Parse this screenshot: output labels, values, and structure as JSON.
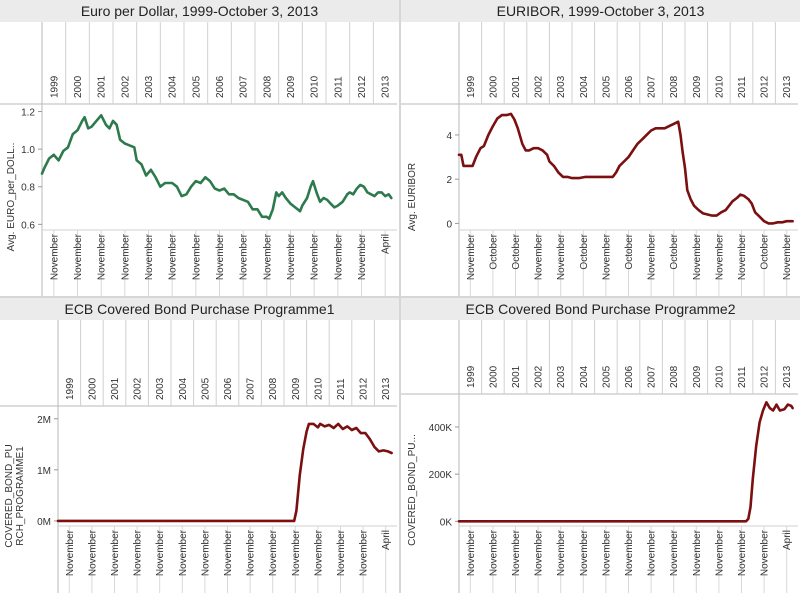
{
  "chart_data": [
    {
      "type": "line",
      "title": "Euro per Dollar, 1999-October 3, 2013",
      "ylabel": "Avg. EURO_per_DOLL..",
      "years": [
        "1999",
        "2000",
        "2001",
        "2002",
        "2003",
        "2004",
        "2005",
        "2006",
        "2007",
        "2008",
        "2009",
        "2010",
        "2011",
        "2012",
        "2013"
      ],
      "bottom_labels": [
        "November",
        "November",
        "November",
        "November",
        "November",
        "November",
        "November",
        "November",
        "November",
        "November",
        "November",
        "November",
        "November",
        "November",
        "April"
      ],
      "yticks": [
        {
          "v": 0.6,
          "label": "0.6"
        },
        {
          "v": 0.8,
          "label": "0.8"
        },
        {
          "v": 1.0,
          "label": "1.0"
        },
        {
          "v": 1.2,
          "label": "1.2"
        }
      ],
      "ylim": [
        0.57,
        1.24
      ],
      "color": "#2d7a4d",
      "series": [
        {
          "values": [
            [
              1999.0,
              0.87
            ],
            [
              1999.1,
              0.9
            ],
            [
              1999.3,
              0.95
            ],
            [
              1999.5,
              0.97
            ],
            [
              1999.7,
              0.94
            ],
            [
              1999.9,
              0.99
            ],
            [
              2000.1,
              1.01
            ],
            [
              2000.3,
              1.08
            ],
            [
              2000.5,
              1.1
            ],
            [
              2000.7,
              1.15
            ],
            [
              2000.8,
              1.17
            ],
            [
              2000.95,
              1.11
            ],
            [
              2001.1,
              1.12
            ],
            [
              2001.3,
              1.15
            ],
            [
              2001.5,
              1.18
            ],
            [
              2001.7,
              1.13
            ],
            [
              2001.85,
              1.11
            ],
            [
              2002.0,
              1.15
            ],
            [
              2002.15,
              1.13
            ],
            [
              2002.3,
              1.05
            ],
            [
              2002.5,
              1.03
            ],
            [
              2002.7,
              1.02
            ],
            [
              2002.9,
              1.01
            ],
            [
              2003.0,
              0.94
            ],
            [
              2003.2,
              0.92
            ],
            [
              2003.4,
              0.86
            ],
            [
              2003.6,
              0.89
            ],
            [
              2003.8,
              0.85
            ],
            [
              2004.0,
              0.8
            ],
            [
              2004.2,
              0.82
            ],
            [
              2004.5,
              0.82
            ],
            [
              2004.7,
              0.8
            ],
            [
              2004.9,
              0.75
            ],
            [
              2005.1,
              0.76
            ],
            [
              2005.3,
              0.8
            ],
            [
              2005.5,
              0.83
            ],
            [
              2005.7,
              0.82
            ],
            [
              2005.9,
              0.85
            ],
            [
              2006.1,
              0.83
            ],
            [
              2006.3,
              0.79
            ],
            [
              2006.5,
              0.78
            ],
            [
              2006.7,
              0.79
            ],
            [
              2006.9,
              0.76
            ],
            [
              2007.1,
              0.76
            ],
            [
              2007.3,
              0.74
            ],
            [
              2007.5,
              0.73
            ],
            [
              2007.7,
              0.72
            ],
            [
              2007.9,
              0.68
            ],
            [
              2008.1,
              0.68
            ],
            [
              2008.3,
              0.64
            ],
            [
              2008.5,
              0.64
            ],
            [
              2008.6,
              0.63
            ],
            [
              2008.75,
              0.68
            ],
            [
              2008.9,
              0.77
            ],
            [
              2009.0,
              0.75
            ],
            [
              2009.15,
              0.77
            ],
            [
              2009.3,
              0.74
            ],
            [
              2009.5,
              0.71
            ],
            [
              2009.7,
              0.69
            ],
            [
              2009.9,
              0.67
            ],
            [
              2010.0,
              0.7
            ],
            [
              2010.2,
              0.74
            ],
            [
              2010.35,
              0.8
            ],
            [
              2010.45,
              0.83
            ],
            [
              2010.6,
              0.77
            ],
            [
              2010.75,
              0.72
            ],
            [
              2010.9,
              0.74
            ],
            [
              2011.05,
              0.73
            ],
            [
              2011.2,
              0.71
            ],
            [
              2011.35,
              0.69
            ],
            [
              2011.5,
              0.7
            ],
            [
              2011.7,
              0.72
            ],
            [
              2011.9,
              0.76
            ],
            [
              2012.0,
              0.77
            ],
            [
              2012.15,
              0.76
            ],
            [
              2012.3,
              0.79
            ],
            [
              2012.45,
              0.81
            ],
            [
              2012.6,
              0.8
            ],
            [
              2012.75,
              0.77
            ],
            [
              2012.9,
              0.76
            ],
            [
              2013.05,
              0.75
            ],
            [
              2013.2,
              0.77
            ],
            [
              2013.35,
              0.77
            ],
            [
              2013.5,
              0.75
            ],
            [
              2013.65,
              0.76
            ],
            [
              2013.76,
              0.74
            ]
          ]
        }
      ]
    },
    {
      "type": "line",
      "title": "EURIBOR, 1999-October 3, 2013",
      "ylabel": "Avg. EURIBOR",
      "years": [
        "1999",
        "2000",
        "2001",
        "2002",
        "2003",
        "2004",
        "2005",
        "2006",
        "2007",
        "2008",
        "2009",
        "2010",
        "2011",
        "2012",
        "2013"
      ],
      "bottom_labels": [
        "November",
        "October",
        "October",
        "November",
        "November",
        "October",
        "November",
        "October",
        "November",
        "October",
        "November",
        "November",
        "November",
        "October",
        "November"
      ],
      "yticks": [
        {
          "v": 0,
          "label": "0"
        },
        {
          "v": 2,
          "label": "2"
        },
        {
          "v": 4,
          "label": "4"
        }
      ],
      "ylim": [
        -0.3,
        5.4
      ],
      "color": "#7a1010",
      "series": [
        {
          "values": [
            [
              1999.0,
              3.1
            ],
            [
              1999.1,
              3.1
            ],
            [
              1999.2,
              2.6
            ],
            [
              1999.4,
              2.6
            ],
            [
              1999.6,
              2.6
            ],
            [
              1999.75,
              3.0
            ],
            [
              1999.95,
              3.4
            ],
            [
              2000.1,
              3.5
            ],
            [
              2000.3,
              4.0
            ],
            [
              2000.5,
              4.4
            ],
            [
              2000.7,
              4.75
            ],
            [
              2000.9,
              4.9
            ],
            [
              2001.1,
              4.9
            ],
            [
              2001.3,
              4.95
            ],
            [
              2001.45,
              4.7
            ],
            [
              2001.6,
              4.3
            ],
            [
              2001.8,
              3.6
            ],
            [
              2001.95,
              3.3
            ],
            [
              2002.1,
              3.3
            ],
            [
              2002.3,
              3.4
            ],
            [
              2002.5,
              3.4
            ],
            [
              2002.7,
              3.3
            ],
            [
              2002.9,
              3.1
            ],
            [
              2003.0,
              2.8
            ],
            [
              2003.2,
              2.6
            ],
            [
              2003.4,
              2.3
            ],
            [
              2003.6,
              2.1
            ],
            [
              2003.8,
              2.1
            ],
            [
              2004.0,
              2.05
            ],
            [
              2004.3,
              2.05
            ],
            [
              2004.6,
              2.1
            ],
            [
              2004.9,
              2.1
            ],
            [
              2005.2,
              2.1
            ],
            [
              2005.5,
              2.1
            ],
            [
              2005.8,
              2.1
            ],
            [
              2005.95,
              2.3
            ],
            [
              2006.1,
              2.6
            ],
            [
              2006.3,
              2.8
            ],
            [
              2006.5,
              3.0
            ],
            [
              2006.7,
              3.3
            ],
            [
              2006.9,
              3.6
            ],
            [
              2007.1,
              3.8
            ],
            [
              2007.3,
              4.0
            ],
            [
              2007.5,
              4.2
            ],
            [
              2007.7,
              4.3
            ],
            [
              2007.9,
              4.3
            ],
            [
              2008.1,
              4.3
            ],
            [
              2008.3,
              4.4
            ],
            [
              2008.5,
              4.5
            ],
            [
              2008.7,
              4.6
            ],
            [
              2008.8,
              4.0
            ],
            [
              2008.9,
              3.2
            ],
            [
              2009.0,
              2.5
            ],
            [
              2009.1,
              1.5
            ],
            [
              2009.25,
              1.1
            ],
            [
              2009.4,
              0.8
            ],
            [
              2009.6,
              0.6
            ],
            [
              2009.8,
              0.45
            ],
            [
              2010.0,
              0.4
            ],
            [
              2010.2,
              0.35
            ],
            [
              2010.4,
              0.35
            ],
            [
              2010.6,
              0.5
            ],
            [
              2010.8,
              0.6
            ],
            [
              2010.95,
              0.8
            ],
            [
              2011.1,
              1.0
            ],
            [
              2011.3,
              1.15
            ],
            [
              2011.45,
              1.3
            ],
            [
              2011.6,
              1.25
            ],
            [
              2011.8,
              1.1
            ],
            [
              2011.95,
              0.9
            ],
            [
              2012.1,
              0.5
            ],
            [
              2012.3,
              0.3
            ],
            [
              2012.5,
              0.1
            ],
            [
              2012.7,
              0.0
            ],
            [
              2012.9,
              0.0
            ],
            [
              2013.1,
              0.05
            ],
            [
              2013.3,
              0.05
            ],
            [
              2013.5,
              0.1
            ],
            [
              2013.76,
              0.1
            ]
          ]
        }
      ]
    },
    {
      "type": "line",
      "title": "ECB Covered Bond Purchase Programme1",
      "ylabel": "COVERED_BOND_PU RCH_PROGRAMME1",
      "ylabel_lines": [
        "COVERED_BOND_PU",
        "RCH_PROGRAMME1"
      ],
      "years": [
        "1999",
        "2000",
        "2001",
        "2002",
        "2003",
        "2004",
        "2005",
        "2006",
        "2007",
        "2008",
        "2009",
        "2010",
        "2011",
        "2012",
        "2013"
      ],
      "bottom_labels": [
        "November",
        "November",
        "November",
        "November",
        "November",
        "November",
        "November",
        "November",
        "November",
        "November",
        "November",
        "November",
        "November",
        "November",
        "April"
      ],
      "yticks": [
        {
          "v": 0,
          "label": "0M"
        },
        {
          "v": 1000000,
          "label": "1M"
        },
        {
          "v": 2000000,
          "label": "2M"
        }
      ],
      "ylim": [
        -100000,
        2250000
      ],
      "color": "#7a1010",
      "series": [
        {
          "values": [
            [
              1999.0,
              0
            ],
            [
              2009.3,
              0
            ],
            [
              2009.45,
              0
            ],
            [
              2009.55,
              200000
            ],
            [
              2009.7,
              900000
            ],
            [
              2009.85,
              1400000
            ],
            [
              2010.0,
              1750000
            ],
            [
              2010.1,
              1900000
            ],
            [
              2010.3,
              1900000
            ],
            [
              2010.5,
              1830000
            ],
            [
              2010.6,
              1900000
            ],
            [
              2010.8,
              1850000
            ],
            [
              2011.0,
              1880000
            ],
            [
              2011.2,
              1820000
            ],
            [
              2011.4,
              1900000
            ],
            [
              2011.6,
              1800000
            ],
            [
              2011.8,
              1850000
            ],
            [
              2012.0,
              1780000
            ],
            [
              2012.2,
              1820000
            ],
            [
              2012.4,
              1720000
            ],
            [
              2012.6,
              1720000
            ],
            [
              2012.8,
              1600000
            ],
            [
              2013.0,
              1450000
            ],
            [
              2013.2,
              1360000
            ],
            [
              2013.4,
              1380000
            ],
            [
              2013.6,
              1360000
            ],
            [
              2013.76,
              1330000
            ]
          ]
        }
      ]
    },
    {
      "type": "line",
      "title": "ECB Covered Bond Purchase Programme2",
      "ylabel": "COVERED_BOND_PU...",
      "years": [
        "1999",
        "2000",
        "2001",
        "2002",
        "2003",
        "2004",
        "2005",
        "2006",
        "2007",
        "2008",
        "2009",
        "2010",
        "2011",
        "2012",
        "2013"
      ],
      "bottom_labels": [
        "November",
        "November",
        "November",
        "November",
        "November",
        "November",
        "November",
        "November",
        "November",
        "November",
        "November",
        "November",
        "November",
        "November",
        "April"
      ],
      "yticks": [
        {
          "v": 0,
          "label": "0K"
        },
        {
          "v": 200000,
          "label": "200K"
        },
        {
          "v": 400000,
          "label": "400K"
        }
      ],
      "ylim": [
        -20000,
        540000
      ],
      "color": "#7a1010",
      "series": [
        {
          "values": [
            [
              1999.0,
              0
            ],
            [
              2011.7,
              0
            ],
            [
              2011.8,
              10000
            ],
            [
              2011.9,
              60000
            ],
            [
              2012.0,
              180000
            ],
            [
              2012.15,
              320000
            ],
            [
              2012.3,
              420000
            ],
            [
              2012.45,
              470000
            ],
            [
              2012.6,
              505000
            ],
            [
              2012.75,
              480000
            ],
            [
              2012.9,
              470000
            ],
            [
              2013.05,
              495000
            ],
            [
              2013.2,
              470000
            ],
            [
              2013.4,
              475000
            ],
            [
              2013.55,
              495000
            ],
            [
              2013.7,
              490000
            ],
            [
              2013.76,
              480000
            ]
          ]
        }
      ]
    }
  ]
}
